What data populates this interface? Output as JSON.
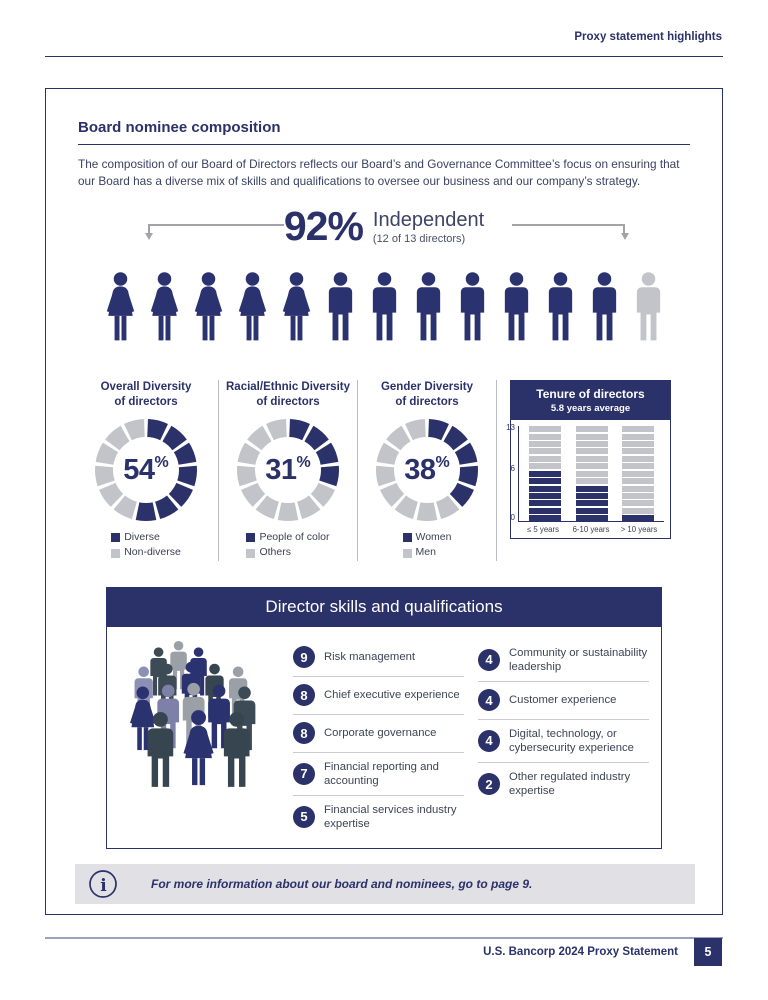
{
  "colors": {
    "navy": "#2b3169",
    "navy_fig": "#2b3270",
    "gray": "#c3c4c9",
    "slate": "#3c4b55",
    "slate_dark": "#36454f",
    "purple": "#8d90b5",
    "purple_dark": "#7d81a8",
    "fig_gray": "#9aa0a6",
    "note_bg": "#e0e0e5"
  },
  "header": {
    "title": "Proxy statement highlights"
  },
  "section": {
    "title": "Board nominee composition",
    "paragraph": "The composition of our Board of Directors reflects our Board’s and Governance Committee’s focus on ensuring that our Board has a diverse mix of skills and qualifications to oversee our business and our company’s strategy."
  },
  "independence": {
    "percent": "92%",
    "label": "Independent",
    "sublabel": "(12 of 13 directors)",
    "people": [
      {
        "type": "woman",
        "color": "navy_fig"
      },
      {
        "type": "woman",
        "color": "navy_fig"
      },
      {
        "type": "woman",
        "color": "navy_fig"
      },
      {
        "type": "woman",
        "color": "navy_fig"
      },
      {
        "type": "woman",
        "color": "navy_fig"
      },
      {
        "type": "man",
        "color": "navy_fig"
      },
      {
        "type": "man",
        "color": "navy_fig"
      },
      {
        "type": "man",
        "color": "navy_fig"
      },
      {
        "type": "man",
        "color": "navy_fig"
      },
      {
        "type": "man",
        "color": "navy_fig"
      },
      {
        "type": "man",
        "color": "navy_fig"
      },
      {
        "type": "man",
        "color": "navy_fig"
      },
      {
        "type": "man",
        "color": "gray"
      }
    ]
  },
  "donuts": [
    {
      "title1": "Overall Diversity",
      "title2": "of directors",
      "value": "54",
      "unit": "%",
      "filled": 7,
      "total": 13,
      "legend": [
        {
          "label": "Diverse",
          "color": "navy"
        },
        {
          "label": "Non-diverse",
          "color": "gray"
        }
      ]
    },
    {
      "title1": "Racial/Ethnic Diversity",
      "title2": "of directors",
      "value": "31",
      "unit": "%",
      "filled": 4,
      "total": 13,
      "legend": [
        {
          "label": "People of color",
          "color": "navy"
        },
        {
          "label": "Others",
          "color": "gray"
        }
      ]
    },
    {
      "title1": "Gender Diversity",
      "title2": "of directors",
      "value": "38",
      "unit": "%",
      "filled": 5,
      "total": 13,
      "legend": [
        {
          "label": "Women",
          "color": "navy"
        },
        {
          "label": "Men",
          "color": "gray"
        }
      ]
    }
  ],
  "tenure": {
    "title": "Tenure of directors",
    "subtitle": "5.8 years average",
    "total": 13,
    "y_ticks": [
      {
        "label": "13",
        "value": 13
      },
      {
        "label": "6",
        "value": 6
      },
      {
        "label": "0",
        "value": 0
      }
    ],
    "bars": [
      {
        "label": "≤ 5 years",
        "value": 7
      },
      {
        "label": "6-10 years",
        "value": 5
      },
      {
        "label": "> 10 years",
        "value": 1
      }
    ]
  },
  "skills": {
    "title": "Director skills and qualifications",
    "left": [
      {
        "count": "9",
        "label": "Risk management"
      },
      {
        "count": "8",
        "label": "Chief executive experience"
      },
      {
        "count": "8",
        "label": "Corporate governance"
      },
      {
        "count": "7",
        "label": "Financial reporting and accounting"
      },
      {
        "count": "5",
        "label": "Financial services industry expertise"
      }
    ],
    "right": [
      {
        "count": "4",
        "label": "Community or sustainability leadership"
      },
      {
        "count": "4",
        "label": "Customer experience"
      },
      {
        "count": "4",
        "label": "Digital, technology, or cybersecurity experience"
      },
      {
        "count": "2",
        "label": "Other regulated industry expertise"
      }
    ]
  },
  "note": {
    "text": "For more information about our board and nominees, go to page 9."
  },
  "footer": {
    "text": "U.S. Bancorp 2024 Proxy Statement",
    "page": "5"
  },
  "chart_data": [
    {
      "type": "pie",
      "title": "Overall Diversity of directors",
      "labels": [
        "Diverse",
        "Non-diverse"
      ],
      "values": [
        54,
        46
      ],
      "center_label": "54%"
    },
    {
      "type": "pie",
      "title": "Racial/Ethnic Diversity of directors",
      "labels": [
        "People of color",
        "Others"
      ],
      "values": [
        31,
        69
      ],
      "center_label": "31%"
    },
    {
      "type": "pie",
      "title": "Gender Diversity of directors",
      "labels": [
        "Women",
        "Men"
      ],
      "values": [
        38,
        62
      ],
      "center_label": "38%"
    },
    {
      "type": "bar",
      "title": "Tenure of directors",
      "subtitle": "5.8 years average",
      "categories": [
        "≤ 5 years",
        "6-10 years",
        "> 10 years"
      ],
      "values": [
        7,
        5,
        1
      ],
      "ylim": [
        0,
        13
      ],
      "yticks": [
        0,
        6,
        13
      ]
    }
  ]
}
